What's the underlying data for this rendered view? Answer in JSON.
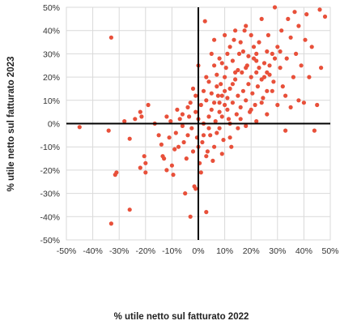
{
  "chart_data": {
    "type": "scatter",
    "title": "",
    "xlabel": "% utile netto sul fatturato 2022",
    "ylabel": "% utile netto sul fatturato 2023",
    "xlim": [
      -0.5,
      0.5
    ],
    "ylim": [
      -0.5,
      0.5
    ],
    "x_ticks": [
      "-50%",
      "-40%",
      "-30%",
      "-20%",
      "-10%",
      "0%",
      "10%",
      "20%",
      "30%",
      "40%",
      "50%"
    ],
    "y_ticks": [
      "50%",
      "40%",
      "30%",
      "20%",
      "10%",
      "0%",
      "-10%",
      "-20%",
      "-30%",
      "-40%",
      "-50%"
    ],
    "grid": "major gridlines on both axes",
    "legend": "none",
    "marker_color": "#e8503a",
    "series": [
      {
        "points": [
          [
            -0.45,
            -0.015
          ],
          [
            -0.33,
            0.37
          ],
          [
            -0.34,
            -0.03
          ],
          [
            -0.31,
            -0.21
          ],
          [
            -0.315,
            -0.22
          ],
          [
            -0.33,
            -0.43
          ],
          [
            -0.26,
            -0.37
          ],
          [
            -0.28,
            0.01
          ],
          [
            -0.26,
            -0.065
          ],
          [
            -0.24,
            0.02
          ],
          [
            -0.22,
            0.05
          ],
          [
            -0.215,
            0.03
          ],
          [
            -0.205,
            -0.14
          ],
          [
            -0.22,
            -0.19
          ],
          [
            -0.2,
            -0.21
          ],
          [
            -0.2,
            -0.17
          ],
          [
            -0.19,
            0.08
          ],
          [
            -0.165,
            0.0
          ],
          [
            -0.15,
            -0.05
          ],
          [
            -0.14,
            -0.09
          ],
          [
            -0.135,
            -0.14
          ],
          [
            -0.13,
            -0.15
          ],
          [
            -0.12,
            -0.2
          ],
          [
            -0.11,
            -0.06
          ],
          [
            -0.105,
            0.01
          ],
          [
            -0.1,
            -0.18
          ],
          [
            -0.095,
            -0.22
          ],
          [
            -0.09,
            -0.11
          ],
          [
            -0.085,
            -0.04
          ],
          [
            -0.075,
            -0.1
          ],
          [
            -0.07,
            0.02
          ],
          [
            -0.06,
            -0.01
          ],
          [
            -0.055,
            -0.08
          ],
          [
            -0.05,
            -0.3
          ],
          [
            -0.045,
            -0.15
          ],
          [
            -0.04,
            -0.05
          ],
          [
            -0.035,
            0.03
          ],
          [
            -0.03,
            -0.4
          ],
          [
            -0.025,
            -0.02
          ],
          [
            -0.02,
            -0.12
          ],
          [
            -0.015,
            -0.27
          ],
          [
            -0.01,
            -0.28
          ],
          [
            -0.01,
            0.05
          ],
          [
            -0.005,
            -0.06
          ],
          [
            0.0,
            0.02
          ],
          [
            0.005,
            -0.17
          ],
          [
            0.01,
            -0.21
          ],
          [
            0.015,
            -0.08
          ],
          [
            0.02,
            0.0
          ],
          [
            0.025,
            0.44
          ],
          [
            0.03,
            -0.38
          ],
          [
            0.035,
            -0.12
          ],
          [
            0.04,
            0.03
          ],
          [
            0.045,
            -0.05
          ],
          [
            0.05,
            0.06
          ],
          [
            0.055,
            -0.16
          ],
          [
            0.06,
            0.09
          ],
          [
            0.065,
            0.01
          ],
          [
            0.07,
            -0.04
          ],
          [
            0.075,
            0.12
          ],
          [
            0.08,
            0.05
          ],
          [
            0.085,
            0.17
          ],
          [
            0.09,
            0.03
          ],
          [
            0.095,
            -0.07
          ],
          [
            0.1,
            0.08
          ],
          [
            0.105,
            0.24
          ],
          [
            0.11,
            0.11
          ],
          [
            0.115,
            0.02
          ],
          [
            0.12,
            0.15
          ],
          [
            0.125,
            -0.1
          ],
          [
            0.13,
            0.09
          ],
          [
            0.135,
            0.36
          ],
          [
            0.14,
            0.19
          ],
          [
            0.145,
            0.04
          ],
          [
            0.15,
            0.12
          ],
          [
            0.155,
            0.3
          ],
          [
            0.16,
            0.07
          ],
          [
            0.165,
            0.22
          ],
          [
            0.17,
            0.14
          ],
          [
            0.175,
            0.4
          ],
          [
            0.18,
            0.1
          ],
          [
            0.185,
            0.25
          ],
          [
            0.19,
            0.17
          ],
          [
            0.195,
            0.05
          ],
          [
            0.2,
            0.2
          ],
          [
            0.205,
            0.13
          ],
          [
            0.21,
            0.28
          ],
          [
            0.215,
            0.08
          ],
          [
            0.22,
            0.22
          ],
          [
            0.225,
            0.16
          ],
          [
            0.23,
            0.35
          ],
          [
            0.24,
            0.19
          ],
          [
            0.245,
            0.11
          ],
          [
            0.25,
            0.26
          ],
          [
            0.26,
            0.14
          ],
          [
            0.265,
            0.38
          ],
          [
            0.27,
            0.21
          ],
          [
            0.28,
            0.3
          ],
          [
            0.285,
            0.18
          ],
          [
            0.29,
            0.5
          ],
          [
            0.3,
            0.33
          ],
          [
            0.31,
            0.24
          ],
          [
            0.315,
            0.4
          ],
          [
            0.32,
            0.16
          ],
          [
            0.33,
            -0.03
          ],
          [
            0.335,
            0.28
          ],
          [
            0.34,
            0.45
          ],
          [
            0.35,
            0.37
          ],
          [
            0.36,
            0.2
          ],
          [
            0.365,
            0.48
          ],
          [
            0.37,
            0.3
          ],
          [
            0.38,
            0.42
          ],
          [
            0.39,
            0.25
          ],
          [
            0.4,
            0.09
          ],
          [
            0.405,
            0.36
          ],
          [
            0.41,
            0.47
          ],
          [
            0.42,
            0.2
          ],
          [
            0.43,
            0.33
          ],
          [
            0.44,
            -0.03
          ],
          [
            0.45,
            0.08
          ],
          [
            0.46,
            0.49
          ],
          [
            0.465,
            0.24
          ],
          [
            0.48,
            0.46
          ],
          [
            0.35,
            0.07
          ],
          [
            0.38,
            0.1
          ],
          [
            0.24,
            0.45
          ],
          [
            0.2,
            0.38
          ],
          [
            0.16,
            0.35
          ],
          [
            0.12,
            0.33
          ],
          [
            0.08,
            0.28
          ],
          [
            0.06,
            0.25
          ],
          [
            0.05,
            0.3
          ],
          [
            0.03,
            0.2
          ],
          [
            0.0,
            0.25
          ],
          [
            -0.02,
            0.15
          ],
          [
            0.02,
            0.14
          ],
          [
            0.04,
            0.18
          ],
          [
            0.07,
            0.21
          ],
          [
            0.09,
            0.26
          ],
          [
            0.11,
            0.3
          ],
          [
            0.13,
            0.27
          ],
          [
            0.15,
            0.23
          ],
          [
            0.17,
            0.31
          ],
          [
            0.19,
            0.29
          ],
          [
            0.21,
            0.33
          ],
          [
            0.23,
            0.24
          ],
          [
            0.25,
            0.2
          ],
          [
            0.27,
            0.25
          ],
          [
            0.29,
            0.28
          ],
          [
            0.31,
            0.31
          ],
          [
            0.26,
            0.31
          ],
          [
            0.22,
            0.27
          ],
          [
            0.18,
            0.24
          ],
          [
            0.14,
            0.22
          ],
          [
            0.1,
            0.2
          ],
          [
            0.07,
            0.16
          ],
          [
            0.05,
            0.13
          ],
          [
            0.03,
            0.1
          ],
          [
            0.01,
            0.08
          ],
          [
            -0.01,
            0.12
          ],
          [
            -0.03,
            0.09
          ],
          [
            0.0,
            -0.1
          ],
          [
            0.03,
            -0.14
          ],
          [
            0.06,
            -0.1
          ],
          [
            0.09,
            -0.13
          ],
          [
            0.12,
            -0.06
          ],
          [
            0.15,
            -0.02
          ],
          [
            0.18,
            -0.01
          ],
          [
            0.22,
            0.01
          ],
          [
            0.26,
            0.04
          ],
          [
            0.3,
            0.08
          ],
          [
            0.33,
            0.12
          ],
          [
            0.28,
            0.14
          ],
          [
            0.24,
            0.09
          ],
          [
            0.2,
            0.06
          ],
          [
            0.16,
            0.02
          ],
          [
            0.12,
            0.0
          ],
          [
            0.08,
            -0.02
          ],
          [
            0.04,
            -0.02
          ],
          [
            0.02,
            -0.05
          ],
          [
            -0.06,
            0.04
          ],
          [
            -0.08,
            0.06
          ],
          [
            -0.12,
            0.03
          ],
          [
            -0.04,
            0.07
          ],
          [
            0.06,
            0.36
          ],
          [
            0.1,
            0.38
          ],
          [
            0.14,
            0.4
          ],
          [
            0.18,
            0.42
          ],
          [
            0.22,
            0.3
          ],
          [
            0.26,
            0.22
          ],
          [
            0.09,
            0.12
          ],
          [
            0.11,
            0.06
          ],
          [
            0.13,
            0.17
          ],
          [
            0.08,
            0.09
          ],
          [
            0.1,
            0.14
          ]
        ]
      }
    ]
  }
}
